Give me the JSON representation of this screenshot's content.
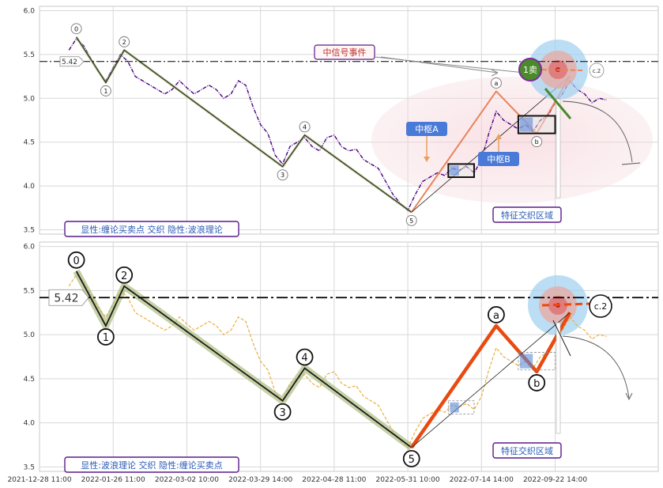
{
  "chart_data": [
    {
      "type": "line",
      "title": "",
      "ylim": [
        3.45,
        6.05
      ],
      "yticks": [
        "6.0",
        "5.5",
        "5.0",
        "4.5",
        "4.0",
        "3.5"
      ],
      "level_label": "5.42",
      "level_value": 5.42,
      "mode_label": "显性:缠论买卖点 交织 隐性:波浪理论",
      "signal_label": "中信号事件",
      "zone_label": "特征交织区域",
      "pivot_a_label": "中枢A",
      "pivot_b_label": "中枢B",
      "sell_label": "1卖",
      "target_label": "c.2",
      "wave_points": [
        {
          "label": "0",
          "x": 1,
          "y": 5.7
        },
        {
          "label": "1",
          "x": 5,
          "y": 5.18
        },
        {
          "label": "2",
          "x": 7.5,
          "y": 5.55
        },
        {
          "label": "3",
          "x": 29,
          "y": 4.22
        },
        {
          "label": "4",
          "x": 32,
          "y": 4.58
        },
        {
          "label": "5",
          "x": 46.5,
          "y": 3.7
        }
      ],
      "abc_points": [
        {
          "label": "a",
          "x": 58,
          "y": 5.08
        },
        {
          "label": "b",
          "x": 63.5,
          "y": 4.6
        }
      ],
      "price_series": [
        [
          0,
          5.55
        ],
        [
          1,
          5.68
        ],
        [
          2,
          5.6
        ],
        [
          3,
          5.45
        ],
        [
          4,
          5.3
        ],
        [
          5,
          5.2
        ],
        [
          6,
          5.35
        ],
        [
          7,
          5.5
        ],
        [
          8,
          5.42
        ],
        [
          9,
          5.25
        ],
        [
          10,
          5.2
        ],
        [
          11,
          5.15
        ],
        [
          12,
          5.1
        ],
        [
          13,
          5.05
        ],
        [
          14,
          5.1
        ],
        [
          15,
          5.2
        ],
        [
          16,
          5.12
        ],
        [
          17,
          5.05
        ],
        [
          18,
          5.1
        ],
        [
          19,
          5.15
        ],
        [
          20,
          5.1
        ],
        [
          21,
          5.0
        ],
        [
          22,
          5.05
        ],
        [
          23,
          5.2
        ],
        [
          24,
          5.15
        ],
        [
          25,
          4.9
        ],
        [
          26,
          4.7
        ],
        [
          27,
          4.6
        ],
        [
          28,
          4.35
        ],
        [
          29,
          4.25
        ],
        [
          30,
          4.45
        ],
        [
          31,
          4.5
        ],
        [
          32,
          4.55
        ],
        [
          33,
          4.45
        ],
        [
          34,
          4.4
        ],
        [
          35,
          4.55
        ],
        [
          36,
          4.58
        ],
        [
          37,
          4.45
        ],
        [
          38,
          4.4
        ],
        [
          39,
          4.42
        ],
        [
          40,
          4.3
        ],
        [
          41,
          4.25
        ],
        [
          42,
          4.2
        ],
        [
          43,
          4.05
        ],
        [
          44,
          3.9
        ],
        [
          45,
          3.8
        ],
        [
          46,
          3.72
        ],
        [
          47,
          3.9
        ],
        [
          48,
          4.05
        ],
        [
          49,
          4.1
        ],
        [
          50,
          4.15
        ],
        [
          51,
          4.12
        ],
        [
          52,
          4.2
        ],
        [
          53,
          4.18
        ],
        [
          54,
          4.22
        ],
        [
          55,
          4.15
        ],
        [
          56,
          4.3
        ],
        [
          57,
          4.6
        ],
        [
          58,
          4.85
        ],
        [
          59,
          4.75
        ],
        [
          60,
          4.7
        ],
        [
          61,
          4.65
        ],
        [
          62,
          4.7
        ],
        [
          63,
          4.62
        ],
        [
          64,
          4.75
        ],
        [
          65,
          4.8
        ],
        [
          66,
          4.95
        ],
        [
          67,
          5.05
        ],
        [
          68,
          5.2
        ],
        [
          69,
          5.1
        ],
        [
          70,
          5.05
        ],
        [
          71,
          4.95
        ],
        [
          72,
          5.0
        ],
        [
          73,
          4.98
        ]
      ],
      "pivot_boxes": [
        {
          "x0": 51.5,
          "x1": 55,
          "y0": 4.1,
          "y1": 4.25
        },
        {
          "x0": 61,
          "x1": 66,
          "y0": 4.6,
          "y1": 4.8
        }
      ]
    },
    {
      "type": "line",
      "title": "",
      "ylim": [
        3.45,
        6.05
      ],
      "yticks": [
        "6.0",
        "5.5",
        "5.0",
        "4.5",
        "4.0",
        "3.5"
      ],
      "level_label": "5.42",
      "level_value": 5.42,
      "mode_label": "显性:波浪理论 交织 隐性:缠论买卖点",
      "zone_label": "特征交织区域",
      "target_label": "c.2",
      "wave_points": [
        {
          "label": "0",
          "x": 1,
          "y": 5.72
        },
        {
          "label": "1",
          "x": 5,
          "y": 5.1
        },
        {
          "label": "2",
          "x": 7.5,
          "y": 5.55
        },
        {
          "label": "3",
          "x": 29,
          "y": 4.25
        },
        {
          "label": "4",
          "x": 32,
          "y": 4.62
        },
        {
          "label": "5",
          "x": 46.5,
          "y": 3.72
        }
      ],
      "abc_points": [
        {
          "label": "a",
          "x": 58,
          "y": 5.1
        },
        {
          "label": "b",
          "x": 63.5,
          "y": 4.58
        }
      ],
      "price_series": [
        [
          0,
          5.55
        ],
        [
          1,
          5.68
        ],
        [
          2,
          5.6
        ],
        [
          3,
          5.45
        ],
        [
          4,
          5.3
        ],
        [
          5,
          5.2
        ],
        [
          6,
          5.35
        ],
        [
          7,
          5.5
        ],
        [
          8,
          5.42
        ],
        [
          9,
          5.25
        ],
        [
          10,
          5.2
        ],
        [
          11,
          5.15
        ],
        [
          12,
          5.1
        ],
        [
          13,
          5.05
        ],
        [
          14,
          5.1
        ],
        [
          15,
          5.2
        ],
        [
          16,
          5.12
        ],
        [
          17,
          5.05
        ],
        [
          18,
          5.1
        ],
        [
          19,
          5.15
        ],
        [
          20,
          5.1
        ],
        [
          21,
          5.0
        ],
        [
          22,
          5.05
        ],
        [
          23,
          5.2
        ],
        [
          24,
          5.15
        ],
        [
          25,
          4.9
        ],
        [
          26,
          4.7
        ],
        [
          27,
          4.6
        ],
        [
          28,
          4.35
        ],
        [
          29,
          4.25
        ],
        [
          30,
          4.45
        ],
        [
          31,
          4.5
        ],
        [
          32,
          4.55
        ],
        [
          33,
          4.45
        ],
        [
          34,
          4.4
        ],
        [
          35,
          4.55
        ],
        [
          36,
          4.58
        ],
        [
          37,
          4.45
        ],
        [
          38,
          4.4
        ],
        [
          39,
          4.42
        ],
        [
          40,
          4.3
        ],
        [
          41,
          4.25
        ],
        [
          42,
          4.2
        ],
        [
          43,
          4.05
        ],
        [
          44,
          3.9
        ],
        [
          45,
          3.8
        ],
        [
          46,
          3.72
        ],
        [
          47,
          3.9
        ],
        [
          48,
          4.05
        ],
        [
          49,
          4.1
        ],
        [
          50,
          4.15
        ],
        [
          51,
          4.12
        ],
        [
          52,
          4.2
        ],
        [
          53,
          4.18
        ],
        [
          54,
          4.22
        ],
        [
          55,
          4.15
        ],
        [
          56,
          4.3
        ],
        [
          57,
          4.6
        ],
        [
          58,
          4.85
        ],
        [
          59,
          4.75
        ],
        [
          60,
          4.7
        ],
        [
          61,
          4.65
        ],
        [
          62,
          4.7
        ],
        [
          63,
          4.62
        ],
        [
          64,
          4.75
        ],
        [
          65,
          4.8
        ],
        [
          66,
          4.95
        ],
        [
          67,
          5.05
        ],
        [
          68,
          5.2
        ],
        [
          69,
          5.1
        ],
        [
          70,
          5.05
        ],
        [
          71,
          4.95
        ],
        [
          72,
          5.0
        ],
        [
          73,
          4.98
        ]
      ],
      "pivot_boxes": [
        {
          "x0": 51.5,
          "x1": 55,
          "y0": 4.1,
          "y1": 4.25
        },
        {
          "x0": 61,
          "x1": 66,
          "y0": 4.6,
          "y1": 4.8
        }
      ]
    }
  ],
  "x_axis": {
    "range": [
      -4,
      80
    ],
    "ticks": [
      {
        "x": -4,
        "label": "2021-12-28 11:00"
      },
      {
        "x": 6,
        "label": "2022-01-26 11:00"
      },
      {
        "x": 16,
        "label": "2022-03-02 10:00"
      },
      {
        "x": 26,
        "label": "2022-03-29 14:00"
      },
      {
        "x": 36,
        "label": "2022-04-28 11:00"
      },
      {
        "x": 46,
        "label": "2022-05-31 10:00"
      },
      {
        "x": 56,
        "label": "2022-07-14 14:00"
      },
      {
        "x": 66,
        "label": "2022-09-22 14:00"
      }
    ]
  },
  "colors": {
    "price_top": "#4b0082",
    "price_bottom": "#e8b040",
    "wave_line": "#1a1a1a",
    "wave_glow": "#a8b878",
    "abc_line": "#e84a10",
    "abc_line_top": "#e8845a",
    "label_purple": "#5a1a8c",
    "label_text_blue": "#2a5ab8",
    "signal_text": "#c03030",
    "pivot_blue": "#4a7ad8",
    "sell_green": "#4a8a2a"
  }
}
